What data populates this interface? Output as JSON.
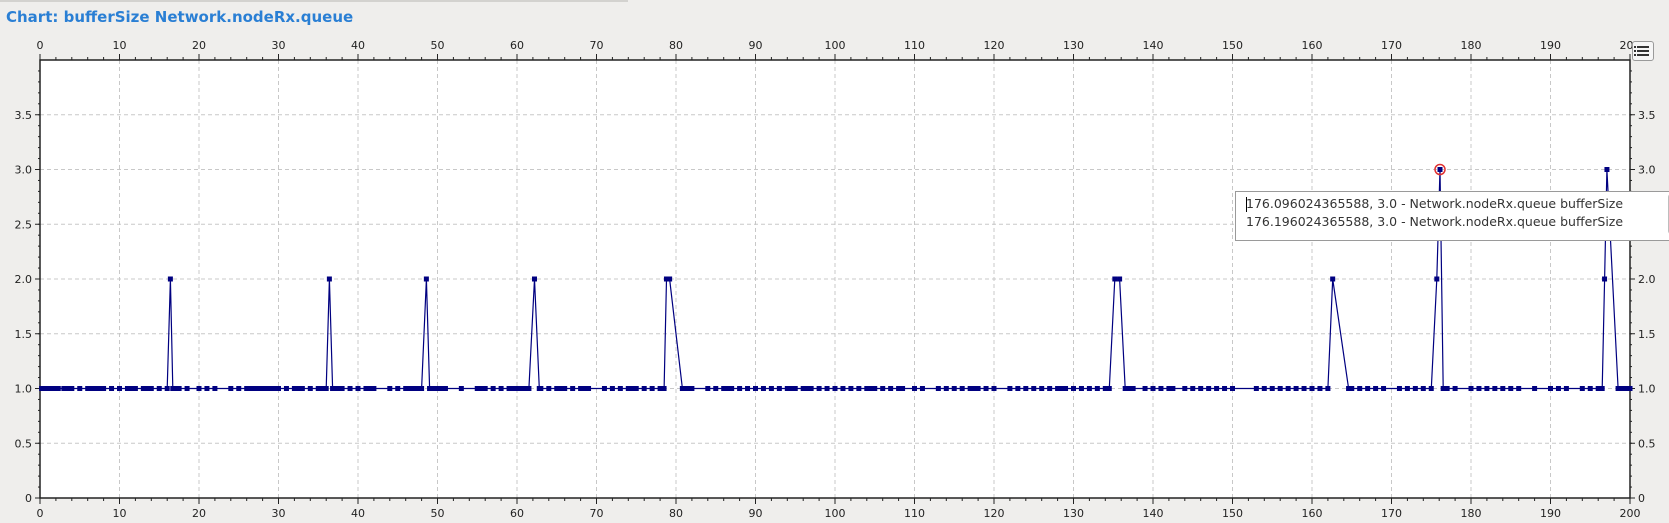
{
  "title": "Chart: bufferSize Network.nodeRx.queue",
  "tooltip": {
    "lines": [
      "176.096024365588, 3.0 - Network.nodeRx.queue bufferSize",
      "176.196024365588, 3.0 - Network.nodeRx.queue bufferSize"
    ]
  },
  "icons": {
    "legend_toggle": "legend-list-icon"
  },
  "colors": {
    "series": "#000080",
    "highlight": "#e03030",
    "title": "#2a7fd4",
    "grid": "#c8c8c8"
  },
  "chart_data": {
    "type": "line",
    "xlim": [
      0,
      200
    ],
    "ylim": [
      0,
      4
    ],
    "x_ticks": [
      0,
      10,
      20,
      30,
      40,
      50,
      60,
      70,
      80,
      90,
      100,
      110,
      120,
      130,
      140,
      150,
      160,
      170,
      180,
      190,
      200
    ],
    "y_ticks": [
      0,
      0.5,
      1.0,
      1.5,
      2.0,
      2.5,
      3.0,
      3.5
    ],
    "y_tick_labels": [
      "0",
      "0.5",
      "1.0",
      "1.5",
      "2.0",
      "2.5",
      "3.0",
      "3.5"
    ],
    "grid": true,
    "axes_mirrored": true,
    "highlighted_point": [
      176.1,
      3.0
    ],
    "series": [
      {
        "points": [
          [
            0.2,
            1
          ],
          [
            0.6,
            1
          ],
          [
            1,
            1
          ],
          [
            1.4,
            1
          ],
          [
            1.8,
            1
          ],
          [
            2.3,
            1
          ],
          [
            3,
            1
          ],
          [
            3.5,
            1
          ],
          [
            4,
            1
          ],
          [
            5,
            1
          ],
          [
            6,
            1
          ],
          [
            6.5,
            1
          ],
          [
            7,
            1
          ],
          [
            7.5,
            1
          ],
          [
            8,
            1
          ],
          [
            9,
            1
          ],
          [
            10,
            1
          ],
          [
            11,
            1
          ],
          [
            11.5,
            1
          ],
          [
            12,
            1
          ],
          [
            13,
            1
          ],
          [
            13.5,
            1
          ],
          [
            14,
            1
          ],
          [
            15,
            1
          ],
          [
            16,
            1
          ],
          [
            16.4,
            2
          ],
          [
            16.7,
            1
          ],
          [
            17,
            1
          ],
          [
            17.5,
            1
          ],
          [
            18.5,
            1
          ],
          [
            20,
            1
          ],
          [
            21,
            1
          ],
          [
            22,
            1
          ],
          [
            24,
            1
          ],
          [
            25,
            1
          ],
          [
            26,
            1
          ],
          [
            26.5,
            1
          ],
          [
            27,
            1
          ],
          [
            27.5,
            1
          ],
          [
            28,
            1
          ],
          [
            28.5,
            1
          ],
          [
            29,
            1
          ],
          [
            29.5,
            1
          ],
          [
            30,
            1
          ],
          [
            31,
            1
          ],
          [
            32,
            1
          ],
          [
            32.5,
            1
          ],
          [
            33,
            1
          ],
          [
            34,
            1
          ],
          [
            35,
            1
          ],
          [
            35.5,
            1
          ],
          [
            36,
            1
          ],
          [
            36.4,
            2
          ],
          [
            36.8,
            1
          ],
          [
            37,
            1
          ],
          [
            37.5,
            1
          ],
          [
            38,
            1
          ],
          [
            39,
            1
          ],
          [
            40,
            1
          ],
          [
            41,
            1
          ],
          [
            41.5,
            1
          ],
          [
            42,
            1
          ],
          [
            44,
            1
          ],
          [
            45,
            1
          ],
          [
            46,
            1
          ],
          [
            46.5,
            1
          ],
          [
            47,
            1
          ],
          [
            47.5,
            1
          ],
          [
            48,
            1
          ],
          [
            48.6,
            2
          ],
          [
            49,
            1
          ],
          [
            49.5,
            1
          ],
          [
            50,
            1
          ],
          [
            50.5,
            1
          ],
          [
            51,
            1
          ],
          [
            53,
            1
          ],
          [
            55,
            1
          ],
          [
            55.5,
            1
          ],
          [
            56,
            1
          ],
          [
            57,
            1
          ],
          [
            58,
            1
          ],
          [
            59,
            1
          ],
          [
            59.5,
            1
          ],
          [
            60,
            1
          ],
          [
            60.5,
            1
          ],
          [
            61,
            1
          ],
          [
            61.5,
            1
          ],
          [
            62.2,
            2
          ],
          [
            62.8,
            1
          ],
          [
            63,
            1
          ],
          [
            64,
            1
          ],
          [
            65,
            1
          ],
          [
            65.5,
            1
          ],
          [
            66,
            1
          ],
          [
            67,
            1
          ],
          [
            68,
            1
          ],
          [
            68.5,
            1
          ],
          [
            69,
            1
          ],
          [
            71,
            1
          ],
          [
            72,
            1
          ],
          [
            73,
            1
          ],
          [
            74,
            1
          ],
          [
            74.5,
            1
          ],
          [
            75,
            1
          ],
          [
            76,
            1
          ],
          [
            77,
            1
          ],
          [
            78,
            1
          ],
          [
            78.5,
            1
          ],
          [
            78.8,
            2
          ],
          [
            79.2,
            2
          ],
          [
            80.8,
            1
          ],
          [
            81,
            1
          ],
          [
            81.5,
            1
          ],
          [
            82,
            1
          ],
          [
            84,
            1
          ],
          [
            85,
            1
          ],
          [
            86,
            1
          ],
          [
            86.5,
            1
          ],
          [
            87,
            1
          ],
          [
            88,
            1
          ],
          [
            89,
            1
          ],
          [
            90,
            1
          ],
          [
            91,
            1
          ],
          [
            92,
            1
          ],
          [
            93,
            1
          ],
          [
            94,
            1
          ],
          [
            94.5,
            1
          ],
          [
            95,
            1
          ],
          [
            96,
            1
          ],
          [
            96.5,
            1
          ],
          [
            97,
            1
          ],
          [
            98,
            1
          ],
          [
            99,
            1
          ],
          [
            100,
            1
          ],
          [
            101,
            1
          ],
          [
            102,
            1
          ],
          [
            103,
            1
          ],
          [
            104,
            1
          ],
          [
            104.5,
            1
          ],
          [
            105,
            1
          ],
          [
            106,
            1
          ],
          [
            107,
            1
          ],
          [
            108,
            1
          ],
          [
            108.5,
            1
          ],
          [
            110,
            1
          ],
          [
            111,
            1
          ],
          [
            113,
            1
          ],
          [
            114,
            1
          ],
          [
            115,
            1
          ],
          [
            116,
            1
          ],
          [
            117,
            1
          ],
          [
            117.5,
            1
          ],
          [
            118,
            1
          ],
          [
            119,
            1
          ],
          [
            120,
            1
          ],
          [
            122,
            1
          ],
          [
            123,
            1
          ],
          [
            124,
            1
          ],
          [
            125,
            1
          ],
          [
            126,
            1
          ],
          [
            127,
            1
          ],
          [
            128,
            1
          ],
          [
            128.5,
            1
          ],
          [
            129,
            1
          ],
          [
            130,
            1
          ],
          [
            131,
            1
          ],
          [
            132,
            1
          ],
          [
            133,
            1
          ],
          [
            134,
            1
          ],
          [
            134.5,
            1
          ],
          [
            135.2,
            2
          ],
          [
            135.8,
            2
          ],
          [
            136.5,
            1
          ],
          [
            137,
            1
          ],
          [
            137.5,
            1
          ],
          [
            139,
            1
          ],
          [
            140,
            1
          ],
          [
            141,
            1
          ],
          [
            142,
            1
          ],
          [
            142.5,
            1
          ],
          [
            144,
            1
          ],
          [
            145,
            1
          ],
          [
            146,
            1
          ],
          [
            147,
            1
          ],
          [
            148,
            1
          ],
          [
            149,
            1
          ],
          [
            150,
            1
          ],
          [
            153,
            1
          ],
          [
            154,
            1
          ],
          [
            155,
            1
          ],
          [
            156,
            1
          ],
          [
            157,
            1
          ],
          [
            158,
            1
          ],
          [
            159,
            1
          ],
          [
            160,
            1
          ],
          [
            161,
            1
          ],
          [
            162,
            1
          ],
          [
            162.6,
            2
          ],
          [
            164.6,
            1
          ],
          [
            165,
            1
          ],
          [
            166,
            1
          ],
          [
            167,
            1
          ],
          [
            168,
            1
          ],
          [
            169,
            1
          ],
          [
            171,
            1
          ],
          [
            172,
            1
          ],
          [
            173,
            1
          ],
          [
            174,
            1
          ],
          [
            175,
            1
          ],
          [
            175.7,
            2
          ],
          [
            176.1,
            3
          ],
          [
            176.5,
            1
          ],
          [
            177,
            1
          ],
          [
            178,
            1
          ],
          [
            180,
            1
          ],
          [
            181,
            1
          ],
          [
            182,
            1
          ],
          [
            183,
            1
          ],
          [
            184,
            1
          ],
          [
            185,
            1
          ],
          [
            186,
            1
          ],
          [
            188,
            1
          ],
          [
            190,
            1
          ],
          [
            191,
            1
          ],
          [
            192,
            1
          ],
          [
            194,
            1
          ],
          [
            195,
            1
          ],
          [
            196,
            1
          ],
          [
            196.5,
            1
          ],
          [
            196.8,
            2
          ],
          [
            197.1,
            3
          ],
          [
            198.5,
            1
          ],
          [
            199,
            1
          ],
          [
            199.5,
            1
          ],
          [
            200,
            1
          ]
        ]
      }
    ]
  }
}
